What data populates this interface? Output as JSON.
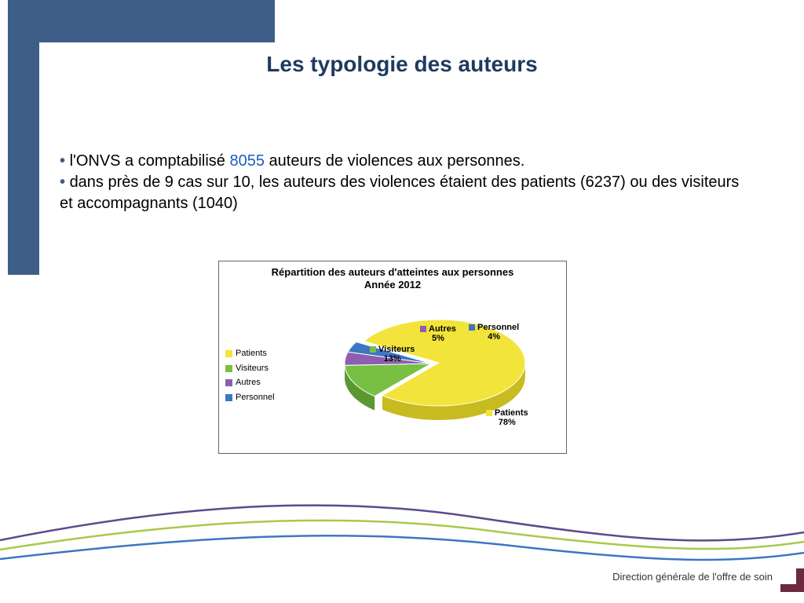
{
  "title": "Les typologie des auteurs",
  "bullets": {
    "b1_pre": "l'ONVS a comptabilisé ",
    "b1_num": "8055",
    "b1_post": " auteurs de violences aux personnes.",
    "b2": "dans près de 9 cas sur 10, les auteurs des violences étaient des patients (6237) ou des visiteurs et accompagnants (1040)"
  },
  "chart": {
    "type": "pie",
    "title_line1": "Répartition des auteurs d'atteintes aux personnes",
    "title_line2": "Année 2012",
    "title_fontsize": 13,
    "slices": [
      {
        "label": "Patients",
        "value": 78,
        "pct": "78%",
        "color": "#f2e43a",
        "side": "#c7bb20"
      },
      {
        "label": "Visiteurs",
        "value": 13,
        "pct": "13%",
        "color": "#77c043",
        "side": "#5a9830"
      },
      {
        "label": "Autres",
        "value": 5,
        "pct": "5%",
        "color": "#8c5fb0",
        "side": "#6b4690"
      },
      {
        "label": "Personnel",
        "value": 4,
        "pct": "4%",
        "color": "#3d76c3",
        "side": "#2b5a9c"
      }
    ],
    "legend": [
      {
        "label": "Patients",
        "color": "#f2e43a"
      },
      {
        "label": "Visiteurs",
        "color": "#77c043"
      },
      {
        "label": "Autres",
        "color": "#8c5fb0"
      },
      {
        "label": "Personnel",
        "color": "#3d76c3"
      }
    ],
    "background_color": "#ffffff",
    "border_color": "#666666",
    "label_fontsize": 11,
    "separation_offset": 10,
    "depth": 18
  },
  "swoosh_colors": {
    "a": "#5a4b8c",
    "b": "#a7c94c",
    "c": "#3d76c3"
  },
  "footer": "Direction générale de l'offre de soin"
}
